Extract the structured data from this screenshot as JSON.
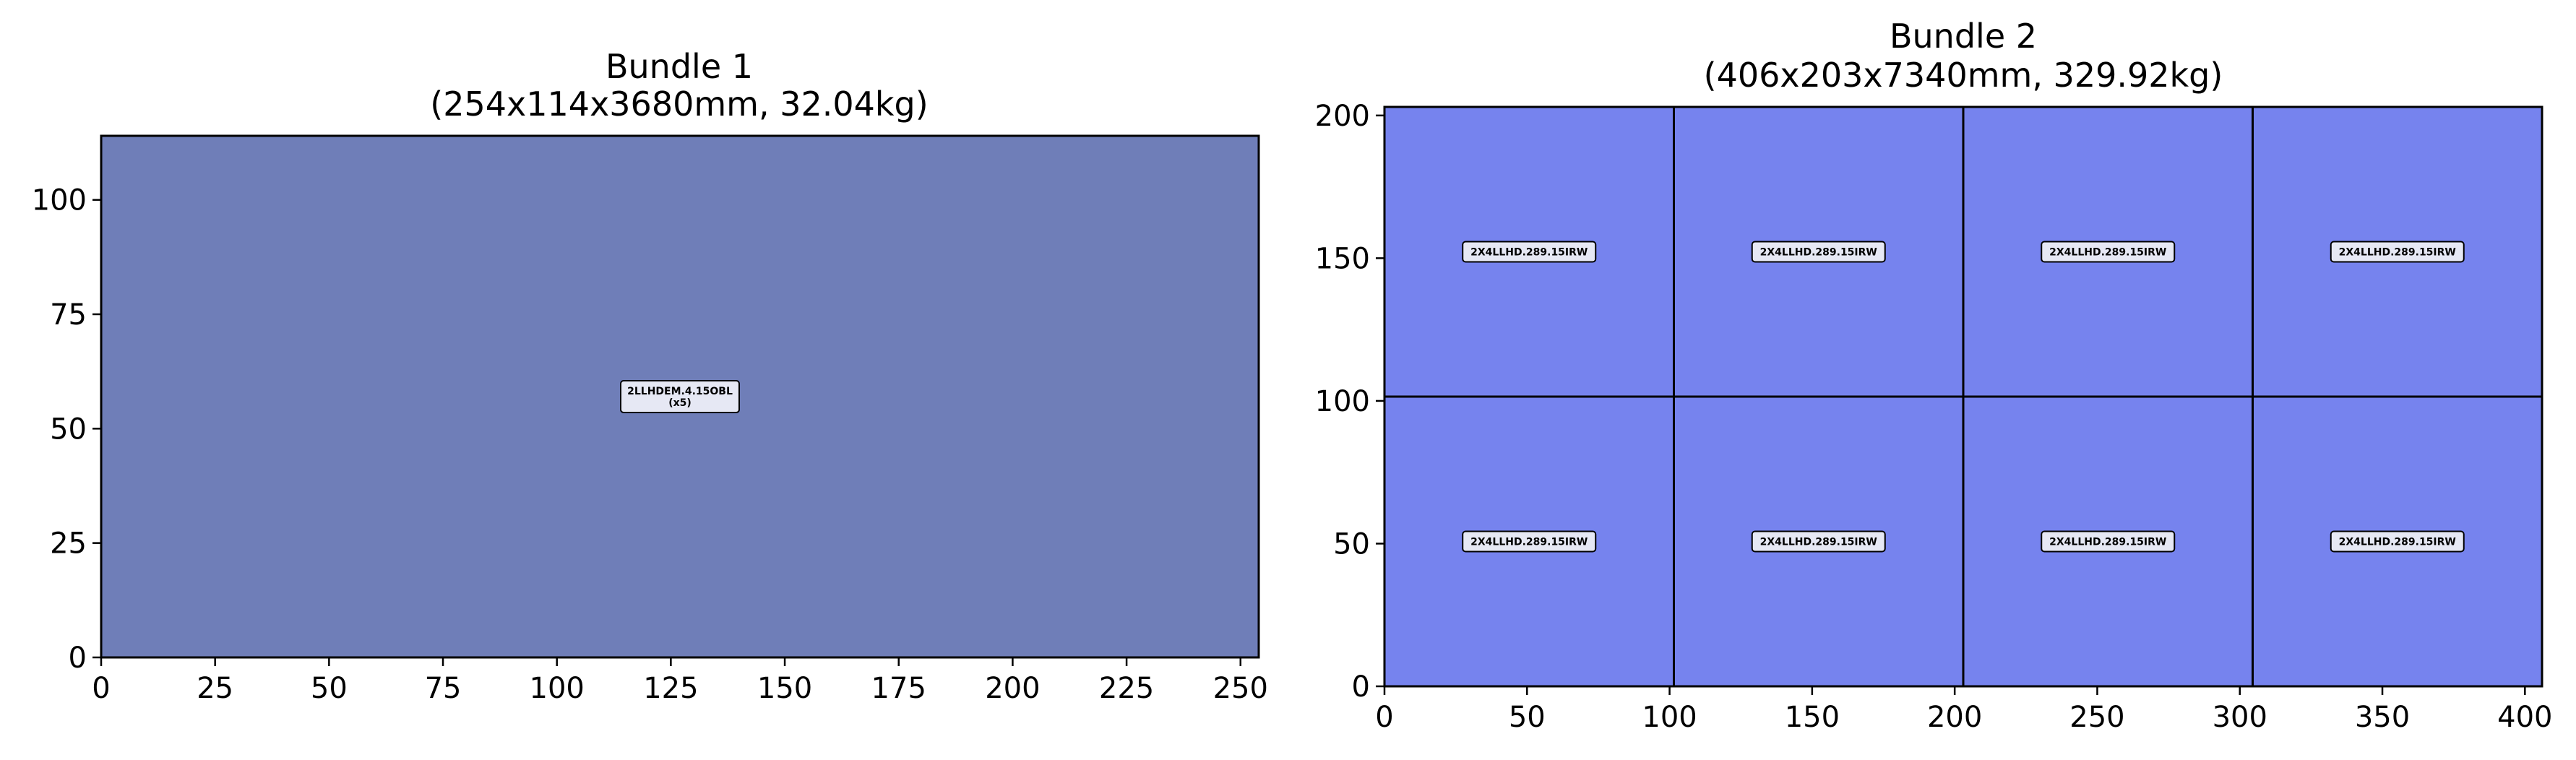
{
  "chart_data": [
    {
      "type": "packing-layout",
      "title_line1": "Bundle 1",
      "title_line2": "(254x114x3680mm, 32.04kg)",
      "xlim": [
        0,
        254
      ],
      "ylim": [
        0,
        114
      ],
      "xticks": [
        0,
        25,
        50,
        75,
        100,
        125,
        150,
        175,
        200,
        225,
        250
      ],
      "yticks": [
        0,
        25,
        50,
        75,
        100
      ],
      "fill_color": "#6f7eb8",
      "pieces": [
        {
          "x0": 0,
          "y0": 0,
          "x1": 254,
          "y1": 114,
          "label": "2LLHDEM.4.15OBL",
          "count": "(x5)"
        }
      ]
    },
    {
      "type": "packing-layout",
      "title_line1": "Bundle 2",
      "title_line2": "(406x203x7340mm, 329.92kg)",
      "xlim": [
        0,
        406
      ],
      "ylim": [
        0,
        203
      ],
      "xticks": [
        0,
        50,
        100,
        150,
        200,
        250,
        300,
        350,
        400
      ],
      "yticks": [
        0,
        50,
        100,
        150,
        200
      ],
      "fill_color": "#7683ee",
      "pieces": [
        {
          "x0": 0,
          "y0": 101.5,
          "x1": 101.5,
          "y1": 203,
          "label": "2X4LLHD.289.15IRW"
        },
        {
          "x0": 101.5,
          "y0": 101.5,
          "x1": 203,
          "y1": 203,
          "label": "2X4LLHD.289.15IRW"
        },
        {
          "x0": 203,
          "y0": 101.5,
          "x1": 304.5,
          "y1": 203,
          "label": "2X4LLHD.289.15IRW"
        },
        {
          "x0": 304.5,
          "y0": 101.5,
          "x1": 406,
          "y1": 203,
          "label": "2X4LLHD.289.15IRW"
        },
        {
          "x0": 0,
          "y0": 0,
          "x1": 101.5,
          "y1": 101.5,
          "label": "2X4LLHD.289.15IRW"
        },
        {
          "x0": 101.5,
          "y0": 0,
          "x1": 203,
          "y1": 101.5,
          "label": "2X4LLHD.289.15IRW"
        },
        {
          "x0": 203,
          "y0": 0,
          "x1": 304.5,
          "y1": 101.5,
          "label": "2X4LLHD.289.15IRW"
        },
        {
          "x0": 304.5,
          "y0": 0,
          "x1": 406,
          "y1": 101.5,
          "label": "2X4LLHD.289.15IRW"
        }
      ]
    }
  ]
}
